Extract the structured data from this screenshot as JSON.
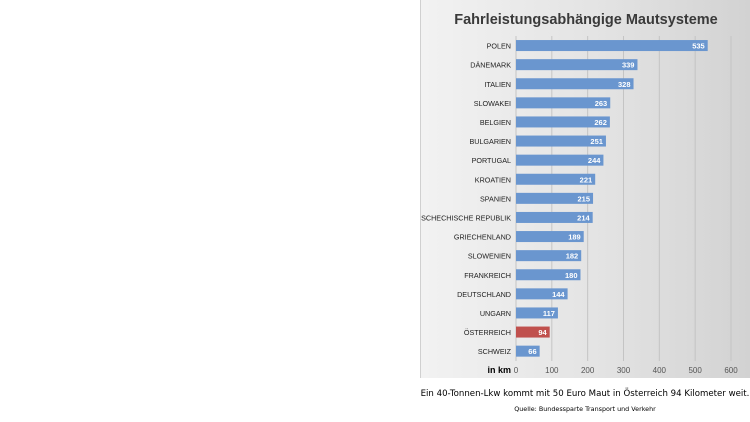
{
  "chart_data": {
    "type": "bar",
    "orientation": "horizontal",
    "title": "Fahrleistungsabhängige Mautsysteme",
    "xlabel": "in km",
    "ylabel": "",
    "xlim": [
      0,
      600
    ],
    "xticks": [
      0,
      100,
      200,
      300,
      400,
      500,
      600
    ],
    "grid": true,
    "legend": "none",
    "categories": [
      "POLEN",
      "DÄNEMARK",
      "ITALIEN",
      "SLOWAKEI",
      "BELGIEN",
      "BULGARIEN",
      "PORTUGAL",
      "KROATIEN",
      "SPANIEN",
      "TSCHECHISCHE REPUBLIK",
      "GRIECHENLAND",
      "SLOWENIEN",
      "FRANKREICH",
      "DEUTSCHLAND",
      "UNGARN",
      "ÖSTERREICH",
      "SCHWEIZ"
    ],
    "values": [
      535,
      339,
      328,
      263,
      262,
      251,
      244,
      221,
      215,
      214,
      189,
      182,
      180,
      144,
      117,
      94,
      66
    ],
    "bar_color": "#6a96cf",
    "highlight_category": "ÖSTERREICH",
    "highlight_color": "#c0504d"
  },
  "caption": "Ein 40-Tonnen-Lkw kommt mit 50 Euro Maut in Österreich 94 Kilometer weit.",
  "source": "Quelle: Bundessparte Transport und Verkehr"
}
